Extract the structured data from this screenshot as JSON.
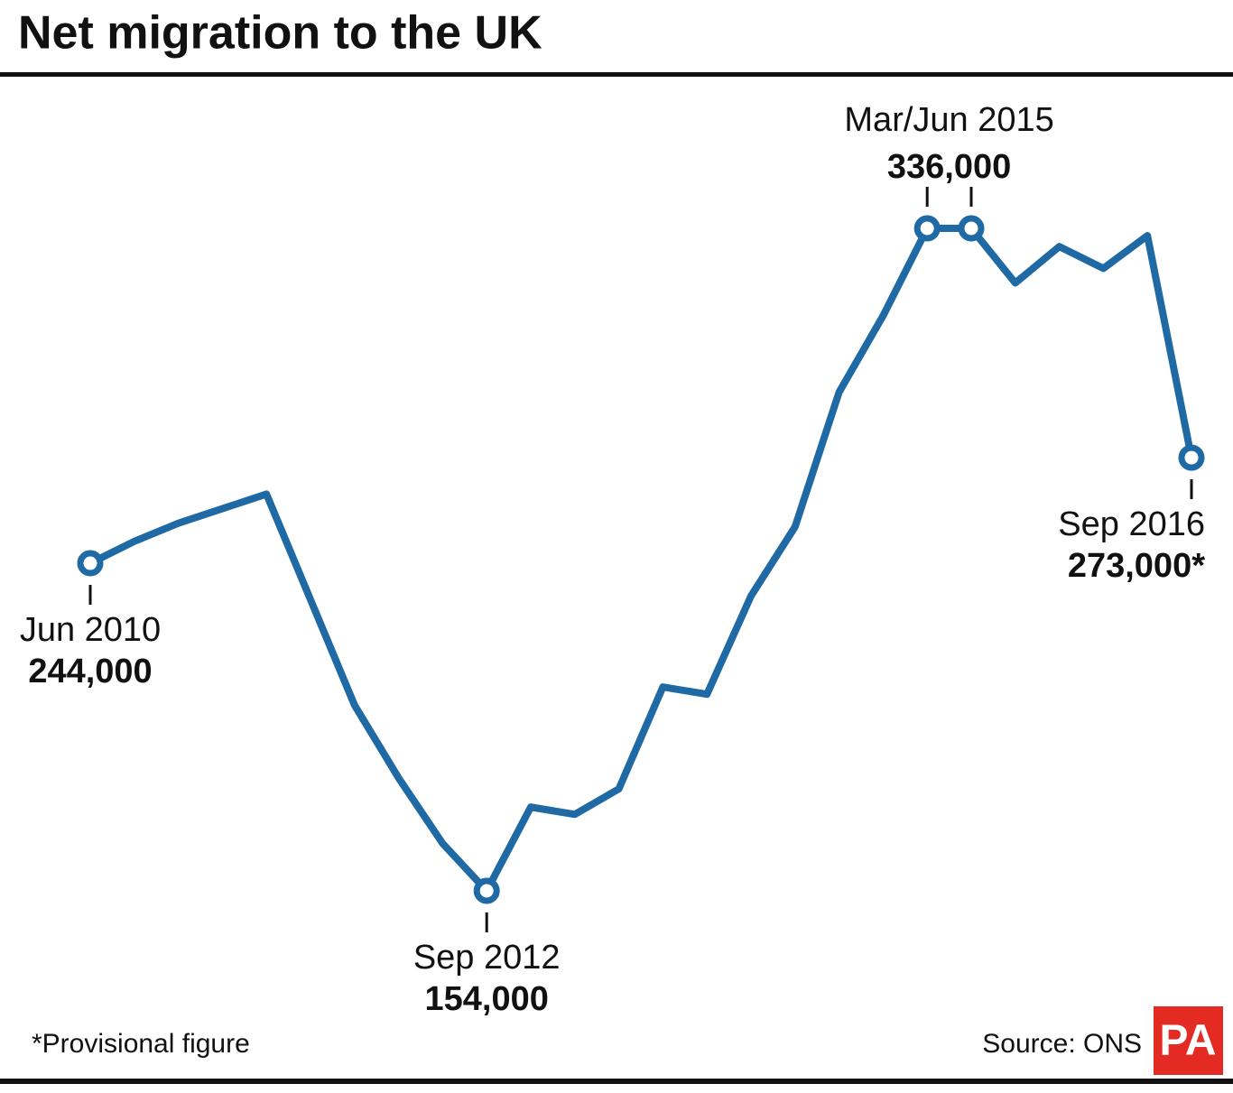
{
  "chart_data": {
    "type": "line",
    "title": "Net migration to the UK",
    "categories": [
      "Jun 2010",
      null,
      null,
      null,
      null,
      null,
      null,
      null,
      null,
      "Sep 2012",
      null,
      null,
      null,
      null,
      null,
      null,
      null,
      null,
      null,
      "Mar/Jun 2015",
      null,
      null,
      null,
      null,
      null,
      "Sep 2016"
    ],
    "series": [
      {
        "name": "Net migration",
        "color": "#1f6aa5",
        "values": [
          244000,
          250000,
          255000,
          259000,
          263000,
          234000,
          205000,
          185000,
          167000,
          154000,
          177000,
          175000,
          182000,
          210000,
          208000,
          235000,
          254000,
          291000,
          312000,
          336000,
          336000,
          321000,
          331000,
          325000,
          334000,
          273000
        ],
        "value_labels": [
          "244,000",
          null,
          null,
          null,
          null,
          null,
          null,
          null,
          null,
          "154,000",
          null,
          null,
          null,
          null,
          null,
          null,
          null,
          null,
          null,
          "336,000",
          null,
          null,
          null,
          null,
          null,
          "273,000*"
        ]
      }
    ],
    "markers": [
      0,
      9,
      19,
      20,
      25
    ],
    "footnote": "*Provisional figure",
    "source": "Source: ONS",
    "logo": "PA"
  }
}
